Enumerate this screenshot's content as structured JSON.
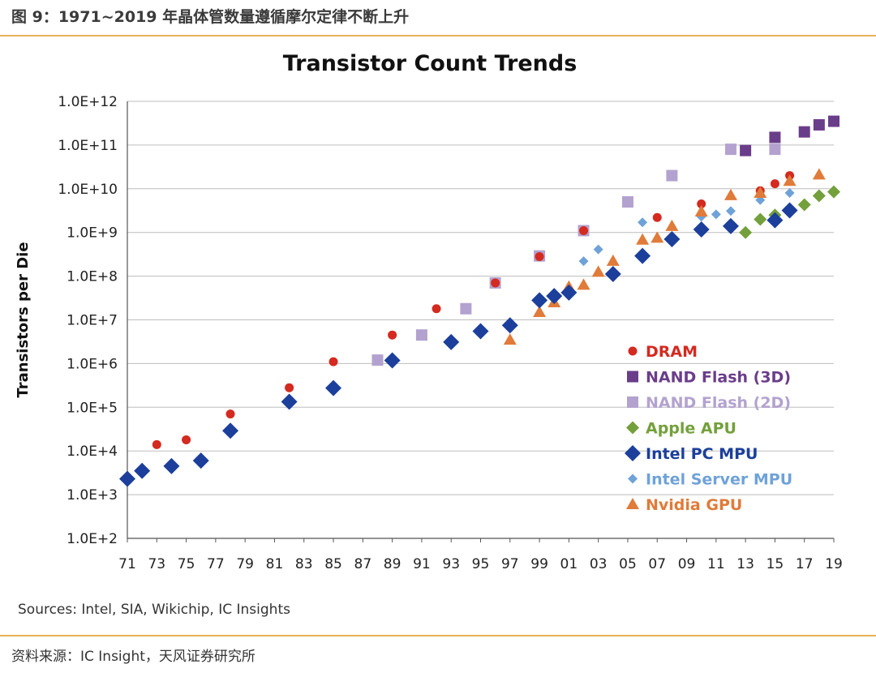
{
  "figure": {
    "header": "图 9：1971~2019 年晶体管数量遵循摩尔定律不断上升",
    "footer": "资料来源：IC Insight，天风证券研究所",
    "sources": "Sources:  Intel, SIA, Wikichip, IC Insights"
  },
  "chart_data": {
    "type": "scatter",
    "title": "Transistor Count Trends",
    "xlabel": "",
    "ylabel": "Transistors per Die",
    "y_scale": "log",
    "ylim": [
      100,
      1000000000000
    ],
    "y_ticks": [
      "1.0E+2",
      "1.0E+3",
      "1.0E+4",
      "1.0E+5",
      "1.0E+6",
      "1.0E+7",
      "1.0E+8",
      "1.0E+9",
      "1.0E+10",
      "1.0E+11",
      "1.0E+12"
    ],
    "x_ticks": [
      "71",
      "73",
      "75",
      "77",
      "79",
      "81",
      "83",
      "85",
      "87",
      "89",
      "91",
      "93",
      "95",
      "97",
      "99",
      "01",
      "03",
      "05",
      "07",
      "09",
      "11",
      "13",
      "15",
      "17",
      "19"
    ],
    "xlim": [
      1971,
      2019
    ],
    "grid": "horizontal",
    "legend_position": "right",
    "series": [
      {
        "name": "DRAM",
        "marker": "circle",
        "color": "#d42a20",
        "points": [
          [
            1973,
            14000
          ],
          [
            1975,
            18000
          ],
          [
            1978,
            70000
          ],
          [
            1982,
            280000
          ],
          [
            1985,
            1100000
          ],
          [
            1989,
            4500000
          ],
          [
            1992,
            18000000
          ],
          [
            1996,
            70000000
          ],
          [
            1999,
            280000000
          ],
          [
            2002,
            1100000000
          ],
          [
            2007,
            2200000000
          ],
          [
            2010,
            4500000000
          ],
          [
            2014,
            9000000000
          ],
          [
            2015,
            13000000000
          ],
          [
            2016,
            20000000000
          ]
        ]
      },
      {
        "name": "NAND Flash (3D)",
        "marker": "square",
        "color": "#6a3d8a",
        "points": [
          [
            2013,
            75000000000
          ],
          [
            2015,
            150000000000
          ],
          [
            2017,
            200000000000
          ],
          [
            2018,
            290000000000
          ],
          [
            2019,
            350000000000
          ]
        ]
      },
      {
        "name": "NAND Flash (2D)",
        "marker": "square",
        "color": "#b3a2cf",
        "points": [
          [
            1988,
            1200000
          ],
          [
            1991,
            4500000
          ],
          [
            1994,
            18000000
          ],
          [
            1996,
            70000000
          ],
          [
            1999,
            290000000
          ],
          [
            2002,
            1100000000
          ],
          [
            2005,
            5000000000
          ],
          [
            2008,
            20000000000
          ],
          [
            2012,
            80000000000
          ],
          [
            2015,
            80000000000
          ]
        ]
      },
      {
        "name": "Apple APU",
        "marker": "diamond-small",
        "color": "#74a03c",
        "points": [
          [
            2013,
            1000000000
          ],
          [
            2014,
            2000000000
          ],
          [
            2015,
            2500000000
          ],
          [
            2016,
            3300000000
          ],
          [
            2017,
            4300000000
          ],
          [
            2018,
            6900000000
          ],
          [
            2019,
            8500000000
          ]
        ]
      },
      {
        "name": "Intel PC MPU",
        "marker": "diamond",
        "color": "#1c3f9c",
        "points": [
          [
            1971,
            2300
          ],
          [
            1972,
            3500
          ],
          [
            1974,
            4500
          ],
          [
            1976,
            6000
          ],
          [
            1978,
            29000
          ],
          [
            1982,
            134000
          ],
          [
            1985,
            275000
          ],
          [
            1989,
            1180000
          ],
          [
            1993,
            3100000
          ],
          [
            1995,
            5500000
          ],
          [
            1997,
            7500000
          ],
          [
            1999,
            28000000
          ],
          [
            2000,
            35000000
          ],
          [
            2001,
            42000000
          ],
          [
            2004,
            112000000
          ],
          [
            2006,
            290000000
          ],
          [
            2008,
            700000000
          ],
          [
            2010,
            1170000000
          ],
          [
            2012,
            1400000000
          ],
          [
            2015,
            1900000000
          ],
          [
            2016,
            3200000000
          ]
        ]
      },
      {
        "name": "Intel Server MPU",
        "marker": "diamond-small",
        "color": "#6fa2d8",
        "points": [
          [
            2002,
            220000000
          ],
          [
            2003,
            410000000
          ],
          [
            2006,
            1700000000
          ],
          [
            2010,
            2300000000
          ],
          [
            2011,
            2600000000
          ],
          [
            2012,
            3100000000
          ],
          [
            2014,
            5500000000
          ],
          [
            2016,
            8000000000
          ]
        ]
      },
      {
        "name": "Nvidia GPU",
        "marker": "triangle",
        "color": "#e07b39",
        "points": [
          [
            1997,
            3500000
          ],
          [
            1999,
            15000000
          ],
          [
            2000,
            25000000
          ],
          [
            2001,
            57000000
          ],
          [
            2002,
            63000000
          ],
          [
            2003,
            125000000
          ],
          [
            2004,
            222000000
          ],
          [
            2006,
            681000000
          ],
          [
            2007,
            750000000
          ],
          [
            2008,
            1400000000
          ],
          [
            2010,
            3000000000
          ],
          [
            2012,
            7100000000
          ],
          [
            2014,
            8000000000
          ],
          [
            2016,
            15000000000
          ],
          [
            2018,
            21000000000
          ]
        ]
      }
    ]
  }
}
